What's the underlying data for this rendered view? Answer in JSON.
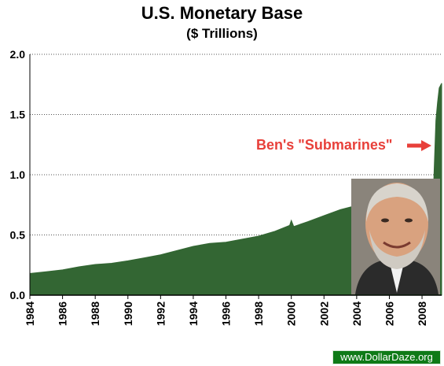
{
  "chart_data": {
    "type": "area",
    "title": "U.S. Monetary Base",
    "subtitle": "($ Trillions)",
    "xlabel": "",
    "ylabel": "",
    "ylim": [
      0,
      2.0
    ],
    "xlim": [
      1984,
      2009.2
    ],
    "grid": "horizontal dotted",
    "y_ticks": [
      "0.0",
      "0.5",
      "1.0",
      "1.5",
      "2.0"
    ],
    "x_ticks": [
      "1984",
      "1986",
      "1988",
      "1990",
      "1992",
      "1994",
      "1996",
      "1998",
      "2000",
      "2002",
      "2004",
      "2006",
      "2008"
    ],
    "series": [
      {
        "color": "#336633",
        "x": [
          1984,
          1985,
          1986,
          1987,
          1988,
          1989,
          1990,
          1991,
          1992,
          1993,
          1994,
          1995,
          1996,
          1997,
          1998,
          1999,
          1999.9,
          2000.0,
          2000.15,
          2001,
          2002,
          2003,
          2004,
          2005,
          2006,
          2007,
          2008,
          2008.55,
          2008.72,
          2008.85,
          2008.95,
          2009.05,
          2009.2
        ],
        "y": [
          0.18,
          0.195,
          0.21,
          0.235,
          0.255,
          0.265,
          0.285,
          0.31,
          0.335,
          0.37,
          0.405,
          0.43,
          0.44,
          0.465,
          0.49,
          0.53,
          0.58,
          0.62,
          0.57,
          0.61,
          0.66,
          0.71,
          0.745,
          0.775,
          0.8,
          0.82,
          0.84,
          0.86,
          0.95,
          1.45,
          1.6,
          1.72,
          1.76
        ]
      }
    ],
    "annotation": "Ben's \"Submarines\"",
    "annotation_color": "#e8403a"
  },
  "photo": {
    "subject": "portrait",
    "icon": "portrait-photo"
  },
  "credit": {
    "text": "www.DollarDaze.org",
    "bg_color": "#0f7a17"
  }
}
